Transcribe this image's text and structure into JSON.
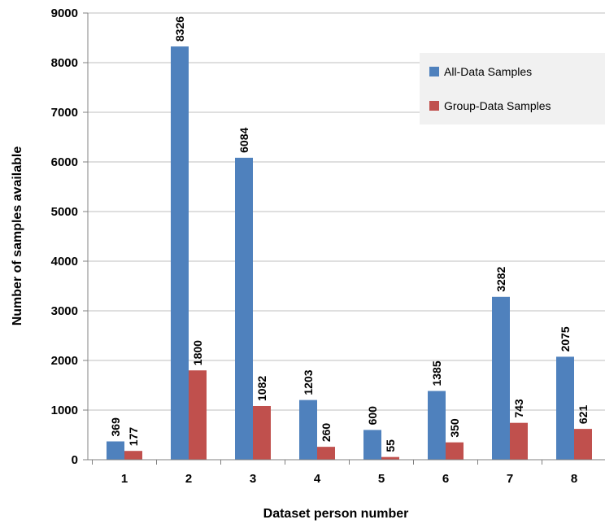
{
  "chart_data": {
    "type": "bar",
    "title": "",
    "xlabel": "Dataset person number",
    "ylabel": "Number of samples available",
    "categories": [
      "1",
      "2",
      "3",
      "4",
      "5",
      "6",
      "7",
      "8"
    ],
    "series": [
      {
        "name": "All-Data Samples",
        "color": "#4F81BD",
        "values": [
          369,
          8326,
          6084,
          1203,
          600,
          1385,
          3282,
          2075
        ]
      },
      {
        "name": "Group-Data Samples",
        "color": "#C0504D",
        "values": [
          177,
          1800,
          1082,
          260,
          55,
          350,
          743,
          621
        ]
      }
    ],
    "ylim": [
      0,
      9000
    ],
    "yticks": [
      0,
      1000,
      2000,
      3000,
      4000,
      5000,
      6000,
      7000,
      8000,
      9000
    ],
    "grid": true,
    "legend": "top-right",
    "data_labels": true
  }
}
